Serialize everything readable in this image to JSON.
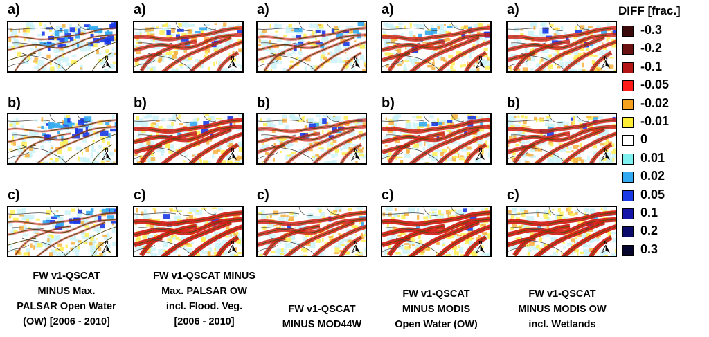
{
  "panel_letters": [
    "a)",
    "b)",
    "c)"
  ],
  "captions": [
    [
      "FW v1-QSCAT",
      "MINUS Max.",
      "PALSAR Open Water",
      "(OW) [2006 - 2010]"
    ],
    [
      "FW v1-QSCAT MINUS",
      "Max. PALSAR OW",
      "incl. Flood. Veg.",
      "[2006 - 2010]"
    ],
    [
      "FW v1-QSCAT",
      "MINUS MOD44W"
    ],
    [
      "FW v1-QSCAT",
      "MINUS MODIS",
      "Open Water (OW)"
    ],
    [
      "FW v1-QSCAT",
      "MINUS MODIS OW",
      "incl. Wetlands"
    ]
  ],
  "north_label": "N",
  "legend": {
    "title": "DIFF [frac.]",
    "entries": [
      {
        "label": "-0.3",
        "color": "#3a0a0a"
      },
      {
        "label": "-0.2",
        "color": "#6b1010"
      },
      {
        "label": "-0.1",
        "color": "#b31414"
      },
      {
        "label": "-0.05",
        "color": "#ff1a1a"
      },
      {
        "label": "-0.02",
        "color": "#f5a01e"
      },
      {
        "label": "-0.01",
        "color": "#ffee33"
      },
      {
        "label": "0",
        "color": "#ffffff"
      },
      {
        "label": "0.01",
        "color": "#7ff0f0"
      },
      {
        "label": "0.02",
        "color": "#33aaf0"
      },
      {
        "label": "0.05",
        "color": "#1a3ae6"
      },
      {
        "label": "0.1",
        "color": "#1414a8"
      },
      {
        "label": "0.2",
        "color": "#0a0a6b"
      },
      {
        "label": "0.3",
        "color": "#05052e"
      }
    ]
  }
}
